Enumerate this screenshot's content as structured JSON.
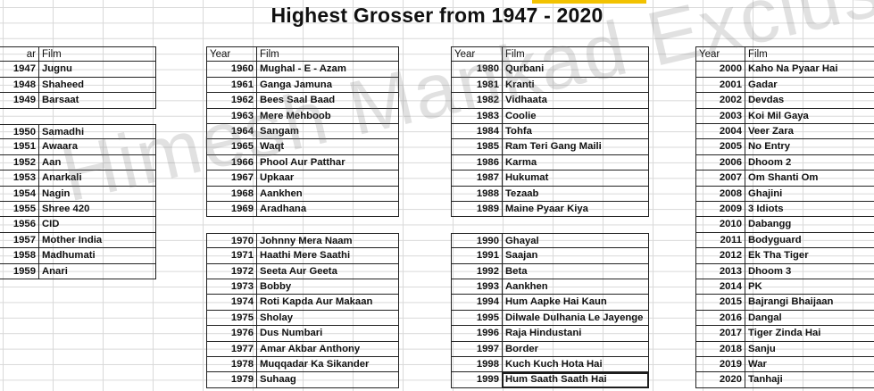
{
  "title": "Highest Grosser from 1947 - 2020",
  "watermark": "Himesh Mankad Exclusive",
  "headers": {
    "year": "Year",
    "film": "Film",
    "year_cut": "ar"
  },
  "columns": [
    {
      "groups": [
        [
          {
            "year": "1947",
            "film": "Jugnu"
          },
          {
            "year": "1948",
            "film": "Shaheed"
          },
          {
            "year": "1949",
            "film": "Barsaat"
          }
        ],
        [
          {
            "year": "1950",
            "film": "Samadhi"
          },
          {
            "year": "1951",
            "film": "Awaara"
          },
          {
            "year": "1952",
            "film": "Aan"
          },
          {
            "year": "1953",
            "film": "Anarkali"
          },
          {
            "year": "1954",
            "film": "Nagin"
          },
          {
            "year": "1955",
            "film": "Shree 420"
          },
          {
            "year": "1956",
            "film": "CID"
          },
          {
            "year": "1957",
            "film": "Mother India"
          },
          {
            "year": "1958",
            "film": "Madhumati"
          },
          {
            "year": "1959",
            "film": "Anari"
          }
        ]
      ]
    },
    {
      "groups": [
        [
          {
            "year": "1960",
            "film": "Mughal - E - Azam"
          },
          {
            "year": "1961",
            "film": "Ganga Jamuna"
          },
          {
            "year": "1962",
            "film": "Bees Saal Baad"
          },
          {
            "year": "1963",
            "film": "Mere Mehboob"
          },
          {
            "year": "1964",
            "film": "Sangam"
          },
          {
            "year": "1965",
            "film": "Waqt"
          },
          {
            "year": "1966",
            "film": "Phool Aur Patthar"
          },
          {
            "year": "1967",
            "film": "Upkaar"
          },
          {
            "year": "1968",
            "film": "Aankhen"
          },
          {
            "year": "1969",
            "film": "Aradhana"
          }
        ],
        [
          {
            "year": "1970",
            "film": "Johnny Mera Naam"
          },
          {
            "year": "1971",
            "film": "Haathi Mere Saathi"
          },
          {
            "year": "1972",
            "film": "Seeta Aur Geeta"
          },
          {
            "year": "1973",
            "film": "Bobby"
          },
          {
            "year": "1974",
            "film": "Roti Kapda Aur Makaan"
          },
          {
            "year": "1975",
            "film": "Sholay"
          },
          {
            "year": "1976",
            "film": "Dus Numbari"
          },
          {
            "year": "1977",
            "film": "Amar Akbar Anthony"
          },
          {
            "year": "1978",
            "film": "Muqqadar Ka Sikander"
          },
          {
            "year": "1979",
            "film": "Suhaag"
          }
        ]
      ]
    },
    {
      "groups": [
        [
          {
            "year": "1980",
            "film": "Qurbani"
          },
          {
            "year": "1981",
            "film": "Kranti"
          },
          {
            "year": "1982",
            "film": "Vidhaata"
          },
          {
            "year": "1983",
            "film": "Coolie"
          },
          {
            "year": "1984",
            "film": "Tohfa"
          },
          {
            "year": "1985",
            "film": "Ram Teri Gang Maili"
          },
          {
            "year": "1986",
            "film": "Karma"
          },
          {
            "year": "1987",
            "film": "Hukumat"
          },
          {
            "year": "1988",
            "film": "Tezaab"
          },
          {
            "year": "1989",
            "film": "Maine Pyaar Kiya"
          }
        ],
        [
          {
            "year": "1990",
            "film": "Ghayal"
          },
          {
            "year": "1991",
            "film": "Saajan"
          },
          {
            "year": "1992",
            "film": "Beta"
          },
          {
            "year": "1993",
            "film": "Aankhen"
          },
          {
            "year": "1994",
            "film": "Hum Aapke Hai Kaun"
          },
          {
            "year": "1995",
            "film": "Dilwale Dulhania Le Jayenge"
          },
          {
            "year": "1996",
            "film": "Raja Hindustani"
          },
          {
            "year": "1997",
            "film": "Border"
          },
          {
            "year": "1998",
            "film": "Kuch Kuch Hota Hai"
          },
          {
            "year": "1999",
            "film": "Hum Saath Saath Hai"
          }
        ]
      ]
    },
    {
      "groups": [
        [
          {
            "year": "2000",
            "film": "Kaho Na Pyaar Hai"
          },
          {
            "year": "2001",
            "film": "Gadar"
          },
          {
            "year": "2002",
            "film": "Devdas"
          },
          {
            "year": "2003",
            "film": "Koi Mil Gaya"
          },
          {
            "year": "2004",
            "film": "Veer Zara"
          },
          {
            "year": "2005",
            "film": "No Entry"
          },
          {
            "year": "2006",
            "film": "Dhoom 2"
          },
          {
            "year": "2007",
            "film": "Om Shanti Om"
          },
          {
            "year": "2008",
            "film": "Ghajini"
          },
          {
            "year": "2009",
            "film": "3 Idiots"
          },
          {
            "year": "2010",
            "film": "Dabangg"
          },
          {
            "year": "2011",
            "film": "Bodyguard"
          },
          {
            "year": "2012",
            "film": "Ek Tha Tiger"
          },
          {
            "year": "2013",
            "film": "Dhoom 3"
          },
          {
            "year": "2014",
            "film": "PK"
          },
          {
            "year": "2015",
            "film": "Bajrangi Bhaijaan"
          },
          {
            "year": "2016",
            "film": "Dangal"
          },
          {
            "year": "2017",
            "film": "Tiger Zinda Hai"
          },
          {
            "year": "2018",
            "film": "Sanju"
          },
          {
            "year": "2019",
            "film": "War"
          },
          {
            "year": "2020",
            "film": "Tanhaji"
          }
        ]
      ]
    }
  ]
}
